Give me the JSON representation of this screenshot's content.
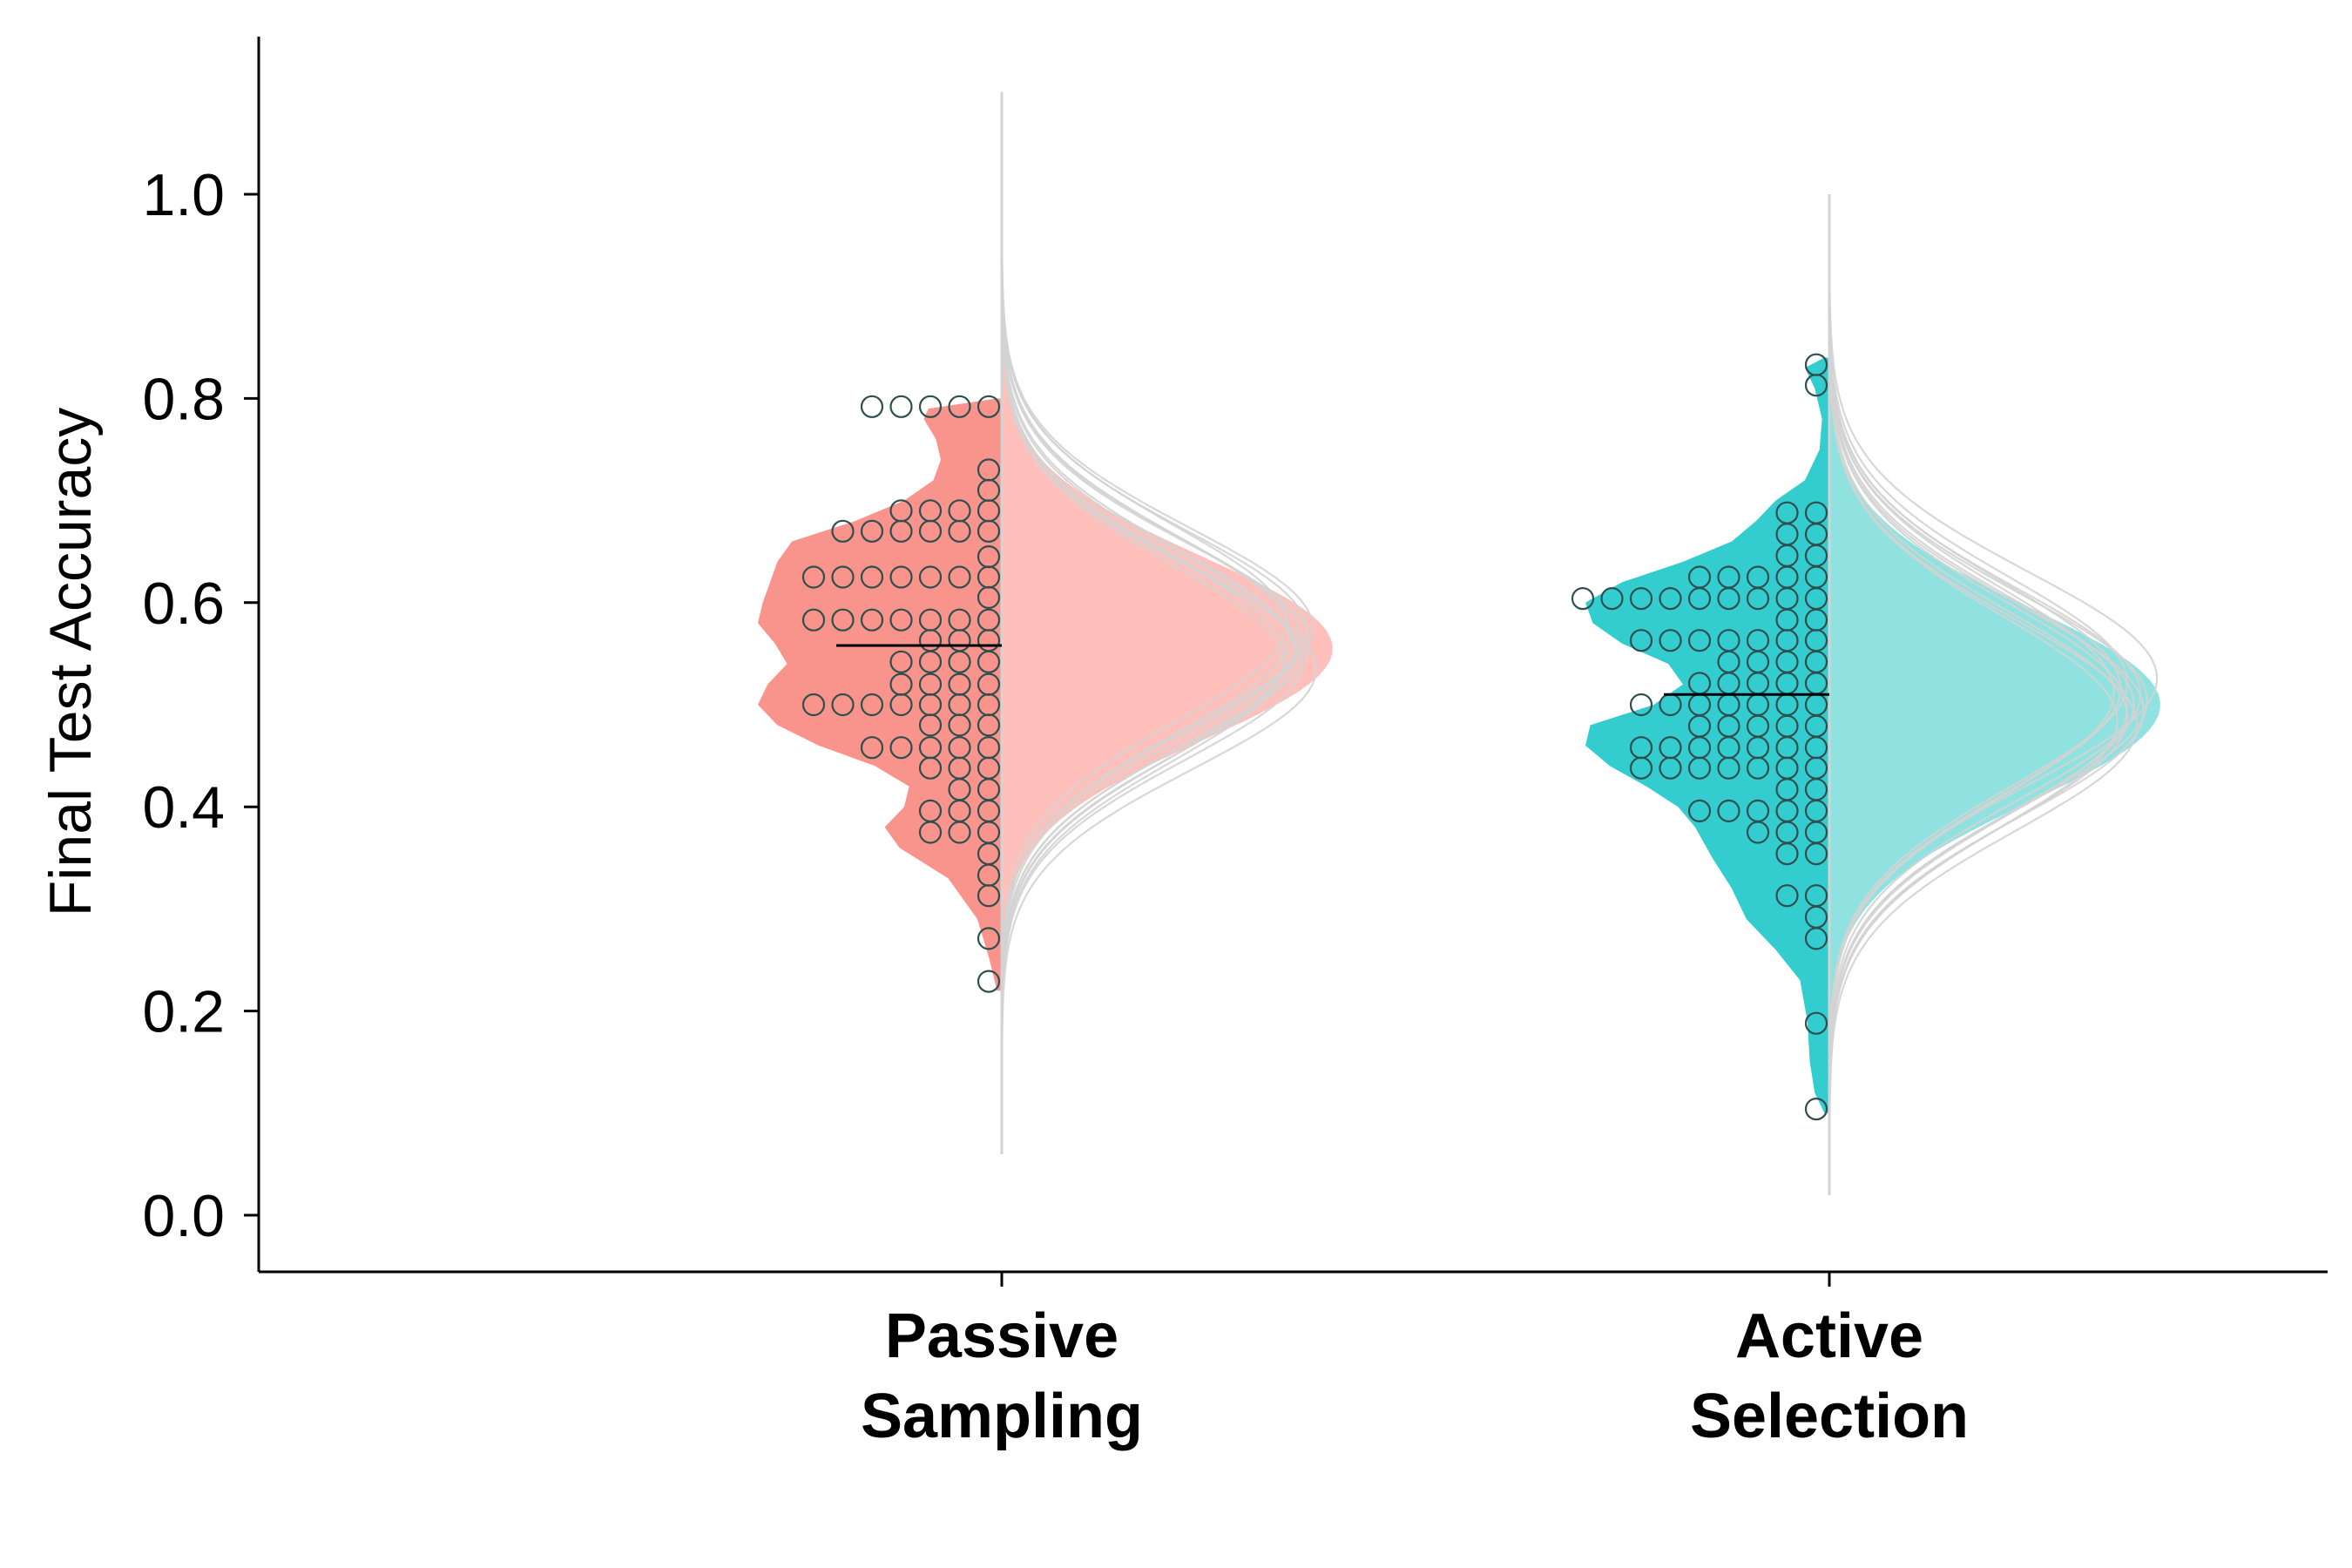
{
  "chart_data": {
    "type": "raincloud",
    "ylabel": "Final Test Accuracy",
    "xlabel": "",
    "ylim": [
      -0.05,
      1.15
    ],
    "yticks": [
      0.0,
      0.2,
      0.4,
      0.6,
      0.8,
      1.0
    ],
    "ytick_labels": [
      "0.0",
      "0.2",
      "0.4",
      "0.6",
      "0.8",
      "1.0"
    ],
    "grid": false,
    "legend": "none",
    "colors": {
      "passive_fill": "#F8948C",
      "passive_fill_light": "#FFC0BB",
      "active_fill": "#33CCCF",
      "active_fill_light": "#8FE2E0",
      "posterior_lines": "#D3D3D3",
      "dot_stroke": "#2F4F4F",
      "axis": "#000000"
    },
    "groups": [
      {
        "name": "Passive Sampling",
        "label_lines": [
          "Passive",
          "Sampling"
        ],
        "median": 0.558,
        "observed_density": [
          [
            0.22,
            0.02
          ],
          [
            0.25,
            0.05
          ],
          [
            0.29,
            0.1
          ],
          [
            0.33,
            0.22
          ],
          [
            0.36,
            0.42
          ],
          [
            0.38,
            0.48
          ],
          [
            0.4,
            0.4
          ],
          [
            0.42,
            0.38
          ],
          [
            0.44,
            0.52
          ],
          [
            0.46,
            0.75
          ],
          [
            0.48,
            0.92
          ],
          [
            0.5,
            1.0
          ],
          [
            0.52,
            0.96
          ],
          [
            0.54,
            0.88
          ],
          [
            0.56,
            0.93
          ],
          [
            0.58,
            1.0
          ],
          [
            0.6,
            0.98
          ],
          [
            0.62,
            0.95
          ],
          [
            0.64,
            0.92
          ],
          [
            0.66,
            0.86
          ],
          [
            0.68,
            0.6
          ],
          [
            0.7,
            0.4
          ],
          [
            0.72,
            0.28
          ],
          [
            0.74,
            0.25
          ],
          [
            0.76,
            0.27
          ],
          [
            0.78,
            0.32
          ],
          [
            0.79,
            0.3
          ],
          [
            0.8,
            0.02
          ]
        ],
        "posterior": {
          "mean": 0.555,
          "sd": 0.09,
          "peak": 1.0,
          "curves": [
            [
              -0.014,
              0.85
            ],
            [
              0.0,
              0.88
            ],
            [
              0.018,
              0.92
            ],
            [
              -0.008,
              0.86
            ],
            [
              0.01,
              0.9
            ],
            [
              -0.02,
              0.95
            ],
            [
              0.024,
              0.86
            ],
            [
              0.005,
              0.93
            ],
            [
              -0.004,
              0.89
            ],
            [
              0.014,
              0.87
            ],
            [
              -0.012,
              0.91
            ],
            [
              0.02,
              0.94
            ]
          ],
          "y_range": [
            0.06,
            1.1
          ]
        },
        "points": [
          {
            "y": 0.792,
            "n": 5
          },
          {
            "y": 0.73,
            "n": 1
          },
          {
            "y": 0.71,
            "n": 1
          },
          {
            "y": 0.69,
            "n": 4
          },
          {
            "y": 0.67,
            "n": 6
          },
          {
            "y": 0.645,
            "n": 1
          },
          {
            "y": 0.625,
            "n": 7
          },
          {
            "y": 0.605,
            "n": 1
          },
          {
            "y": 0.583,
            "n": 7
          },
          {
            "y": 0.563,
            "n": 3
          },
          {
            "y": 0.542,
            "n": 4
          },
          {
            "y": 0.52,
            "n": 4
          },
          {
            "y": 0.5,
            "n": 7
          },
          {
            "y": 0.48,
            "n": 3
          },
          {
            "y": 0.458,
            "n": 5
          },
          {
            "y": 0.438,
            "n": 3
          },
          {
            "y": 0.417,
            "n": 2
          },
          {
            "y": 0.396,
            "n": 3
          },
          {
            "y": 0.375,
            "n": 3
          },
          {
            "y": 0.354,
            "n": 1
          },
          {
            "y": 0.333,
            "n": 1
          },
          {
            "y": 0.313,
            "n": 1
          },
          {
            "y": 0.271,
            "n": 1
          },
          {
            "y": 0.229,
            "n": 1
          }
        ]
      },
      {
        "name": "Active Selection",
        "label_lines": [
          "Active",
          "Selection"
        ],
        "median": 0.51,
        "observed_density": [
          [
            0.1,
            0.02
          ],
          [
            0.12,
            0.06
          ],
          [
            0.15,
            0.08
          ],
          [
            0.19,
            0.09
          ],
          [
            0.23,
            0.12
          ],
          [
            0.26,
            0.22
          ],
          [
            0.29,
            0.34
          ],
          [
            0.32,
            0.4
          ],
          [
            0.35,
            0.48
          ],
          [
            0.38,
            0.55
          ],
          [
            0.4,
            0.62
          ],
          [
            0.42,
            0.75
          ],
          [
            0.44,
            0.9
          ],
          [
            0.46,
            1.0
          ],
          [
            0.48,
            0.98
          ],
          [
            0.5,
            0.72
          ],
          [
            0.52,
            0.6
          ],
          [
            0.54,
            0.66
          ],
          [
            0.56,
            0.85
          ],
          [
            0.58,
            0.97
          ],
          [
            0.6,
            1.0
          ],
          [
            0.62,
            0.85
          ],
          [
            0.64,
            0.6
          ],
          [
            0.66,
            0.4
          ],
          [
            0.68,
            0.3
          ],
          [
            0.7,
            0.22
          ],
          [
            0.72,
            0.1
          ],
          [
            0.75,
            0.04
          ],
          [
            0.78,
            0.03
          ],
          [
            0.81,
            0.06
          ],
          [
            0.83,
            0.1
          ],
          [
            0.84,
            0.02
          ]
        ],
        "posterior": {
          "mean": 0.5,
          "sd": 0.095,
          "peak": 1.0,
          "curves": [
            [
              -0.012,
              0.9
            ],
            [
              0.0,
              0.92
            ],
            [
              0.016,
              0.88
            ],
            [
              -0.006,
              0.95
            ],
            [
              0.012,
              0.86
            ],
            [
              -0.02,
              0.93
            ],
            [
              0.022,
              0.9
            ],
            [
              0.004,
              0.96
            ],
            [
              -0.016,
              0.87
            ],
            [
              0.01,
              0.94
            ],
            [
              0.026,
              0.99
            ],
            [
              -0.004,
              0.9
            ]
          ],
          "y_range": [
            0.02,
            1.0
          ]
        },
        "points": [
          {
            "y": 0.833,
            "n": 1
          },
          {
            "y": 0.813,
            "n": 1
          },
          {
            "y": 0.688,
            "n": 2
          },
          {
            "y": 0.667,
            "n": 2
          },
          {
            "y": 0.646,
            "n": 2
          },
          {
            "y": 0.625,
            "n": 5
          },
          {
            "y": 0.604,
            "n": 9
          },
          {
            "y": 0.583,
            "n": 2
          },
          {
            "y": 0.563,
            "n": 7
          },
          {
            "y": 0.542,
            "n": 4
          },
          {
            "y": 0.521,
            "n": 5
          },
          {
            "y": 0.5,
            "n": 7
          },
          {
            "y": 0.479,
            "n": 5
          },
          {
            "y": 0.458,
            "n": 7
          },
          {
            "y": 0.438,
            "n": 7
          },
          {
            "y": 0.417,
            "n": 2
          },
          {
            "y": 0.396,
            "n": 5
          },
          {
            "y": 0.375,
            "n": 3
          },
          {
            "y": 0.354,
            "n": 2
          },
          {
            "y": 0.313,
            "n": 2
          },
          {
            "y": 0.292,
            "n": 1
          },
          {
            "y": 0.271,
            "n": 1
          },
          {
            "y": 0.188,
            "n": 1
          },
          {
            "y": 0.104,
            "n": 1
          }
        ]
      }
    ]
  }
}
